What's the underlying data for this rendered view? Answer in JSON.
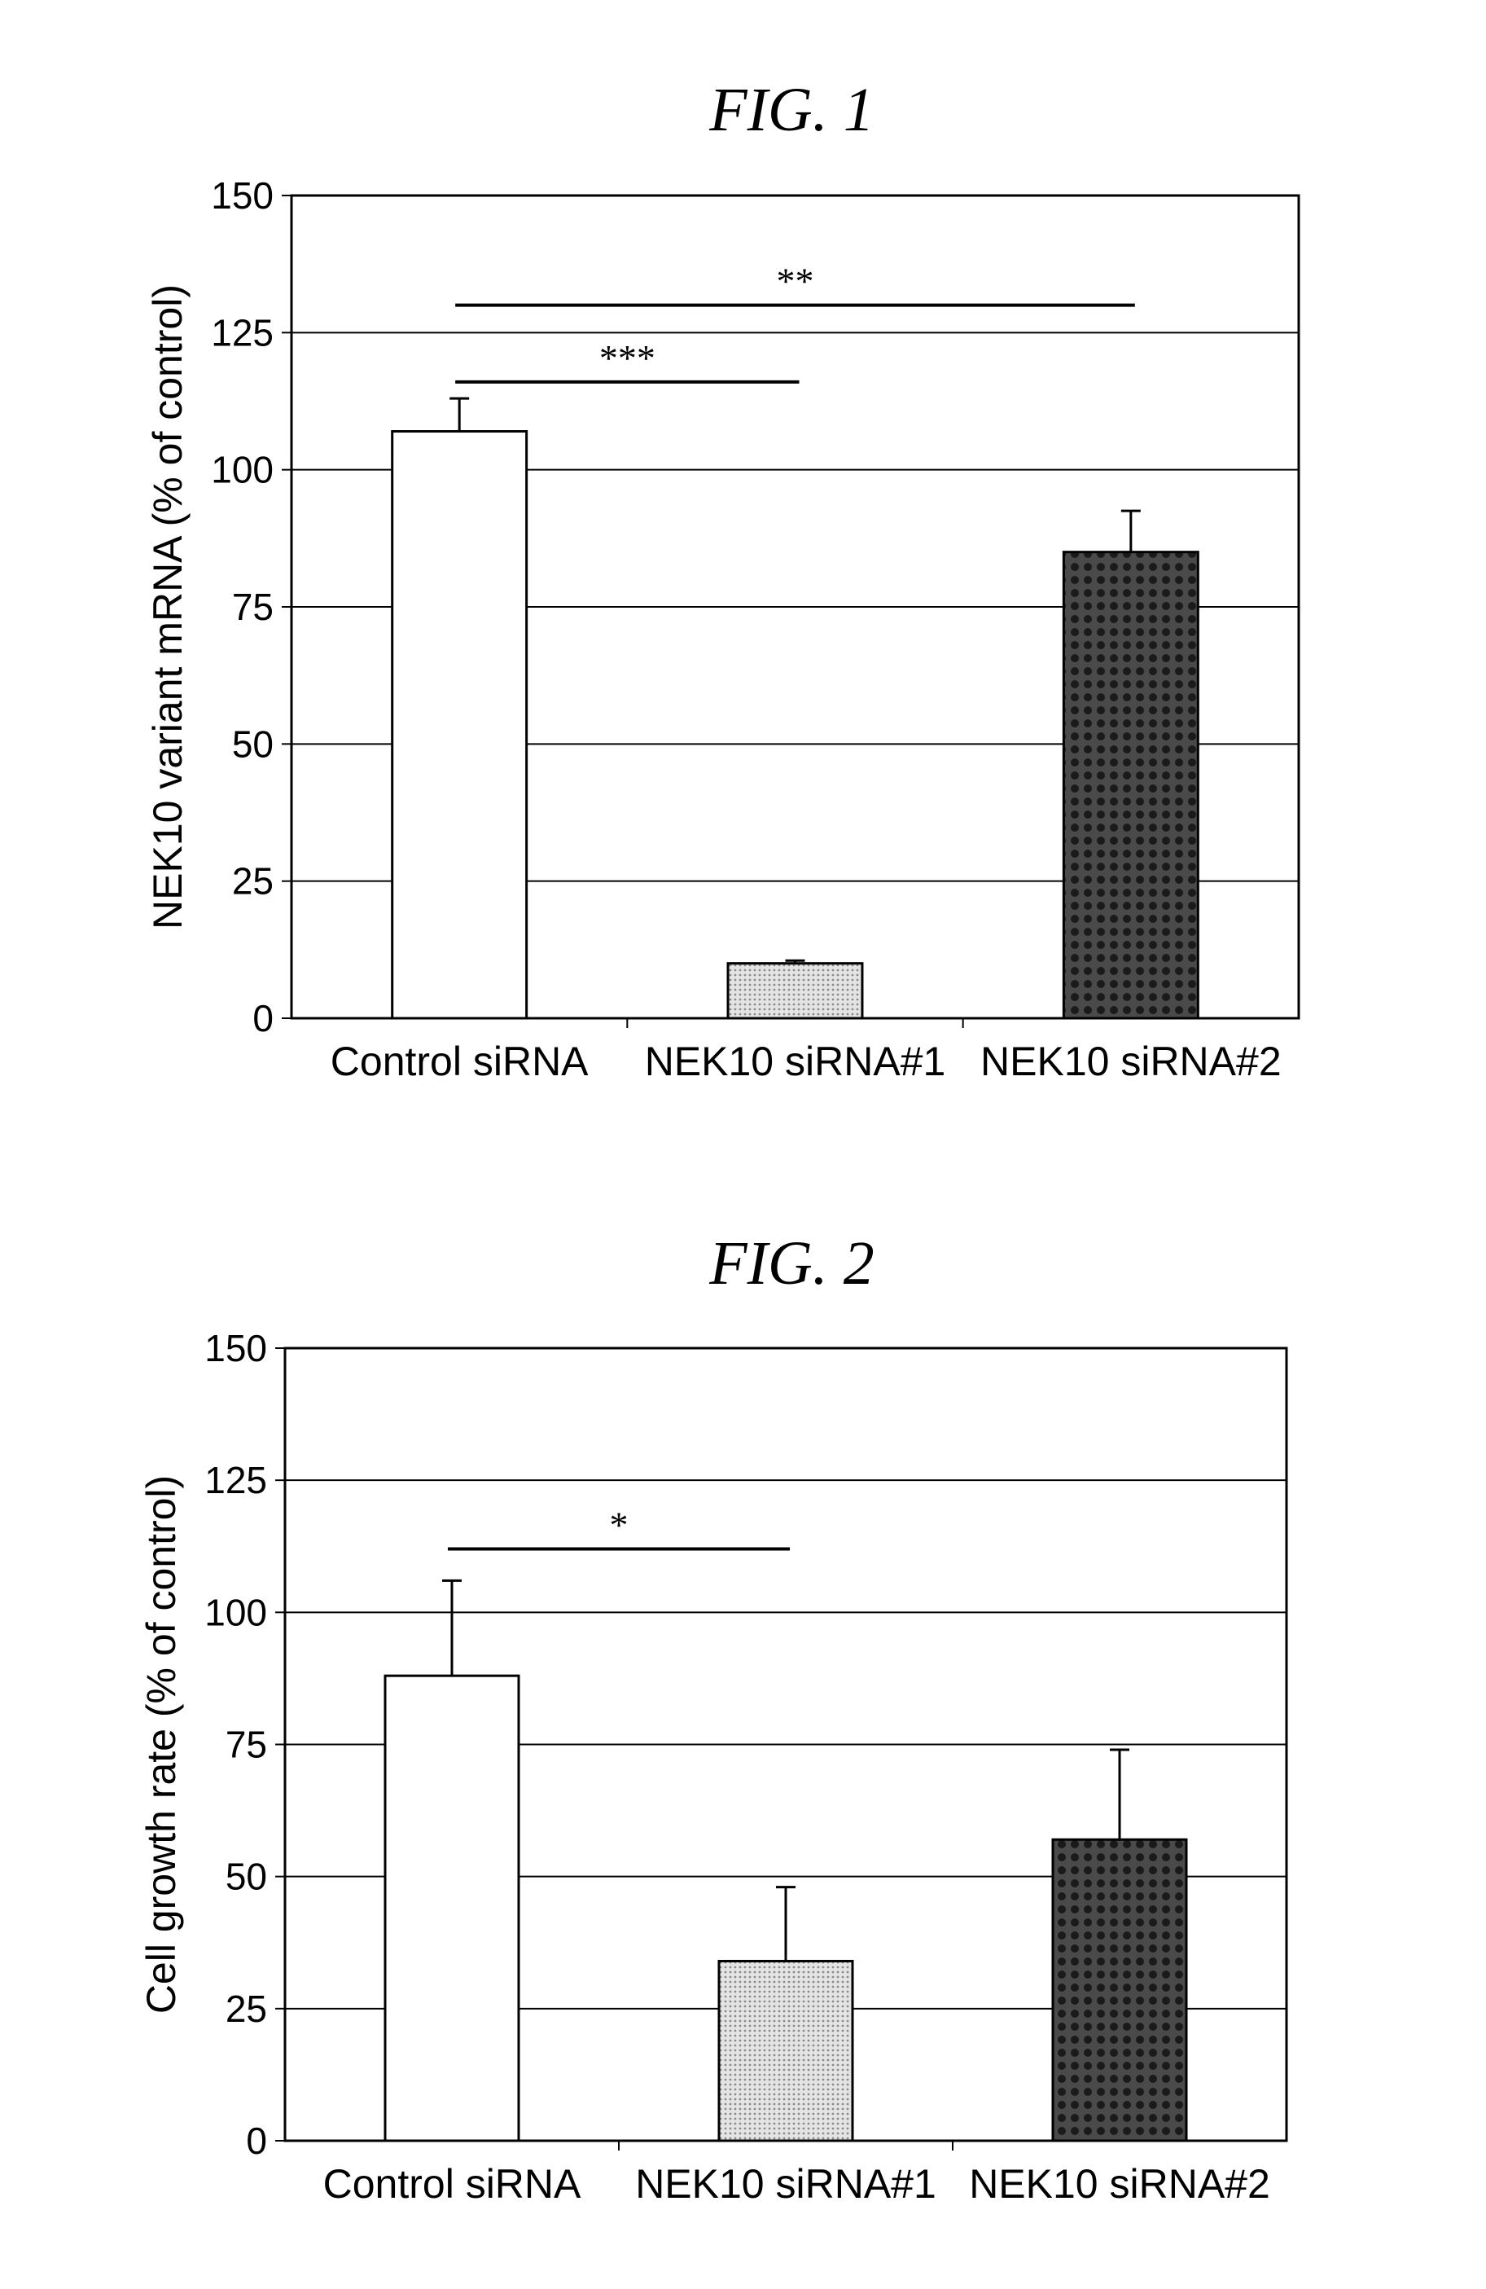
{
  "fig1_title": "FIG. 1",
  "fig2_title": "FIG. 2",
  "chart_data": [
    {
      "type": "bar",
      "title": "FIG. 1",
      "xlabel": "",
      "ylabel": "NEK10 variant mRNA (% of control)",
      "categories": [
        "Control siRNA",
        "NEK10 siRNA#1",
        "NEK10 siRNA#2"
      ],
      "values": [
        107,
        10,
        85
      ],
      "error": [
        6,
        0.5,
        7.5
      ],
      "ylim": [
        0,
        150
      ],
      "yticks": [
        0,
        25,
        50,
        75,
        100,
        125,
        150
      ],
      "grid": true,
      "fills": [
        "#ffffff",
        "#c8c8c8",
        "#303030"
      ],
      "significance": [
        {
          "from": 0,
          "to": 1,
          "label": "***",
          "y": 116
        },
        {
          "from": 0,
          "to": 2,
          "label": "**",
          "y": 130
        }
      ]
    },
    {
      "type": "bar",
      "title": "FIG. 2",
      "xlabel": "",
      "ylabel": "Cell growth rate (% of control)",
      "categories": [
        "Control siRNA",
        "NEK10 siRNA#1",
        "NEK10 siRNA#2"
      ],
      "values": [
        88,
        34,
        57
      ],
      "error": [
        18,
        14,
        17
      ],
      "ylim": [
        0,
        150
      ],
      "yticks": [
        0,
        25,
        50,
        75,
        100,
        125,
        150
      ],
      "grid": true,
      "fills": [
        "#ffffff",
        "#c8c8c8",
        "#303030"
      ],
      "significance": [
        {
          "from": 0,
          "to": 1,
          "label": "*",
          "y": 112
        }
      ]
    }
  ]
}
